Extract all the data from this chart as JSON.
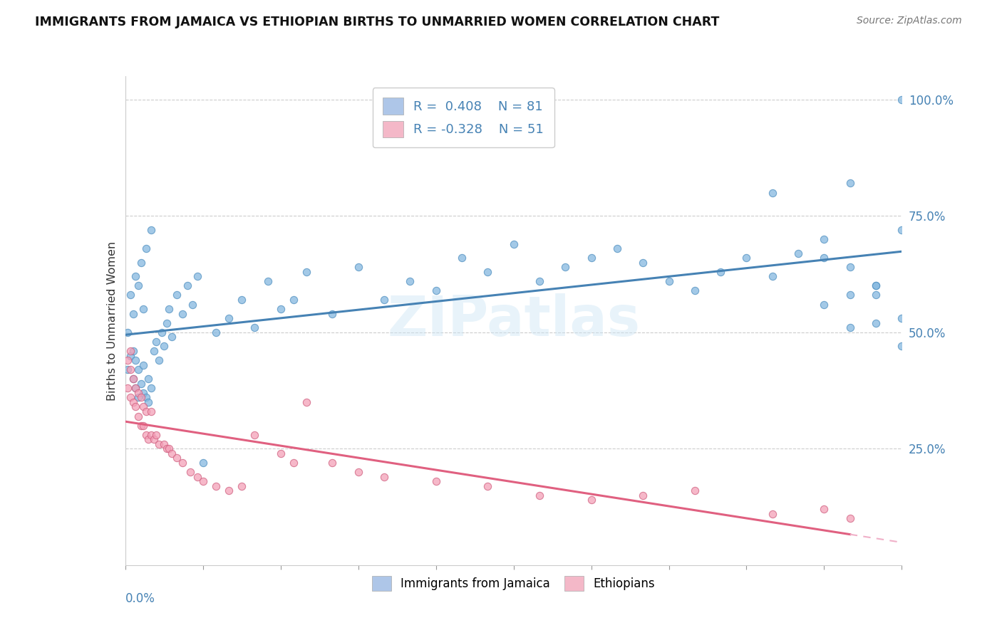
{
  "title": "IMMIGRANTS FROM JAMAICA VS ETHIOPIAN BIRTHS TO UNMARRIED WOMEN CORRELATION CHART",
  "source_text": "Source: ZipAtlas.com",
  "ylabel": "Births to Unmarried Women",
  "watermark": "ZIPatlas",
  "blue_scatter_color": "#85b8e0",
  "pink_scatter_color": "#f4a0b8",
  "blue_line_color": "#4682b4",
  "pink_line_color": "#e06080",
  "pink_line_dashed_color": "#f0b0c8",
  "legend_blue_color": "#aec6e8",
  "legend_pink_color": "#f4b8c8",
  "xlim": [
    0.0,
    0.3
  ],
  "ylim": [
    0.0,
    1.05
  ],
  "blue_R": 0.408,
  "blue_N": 81,
  "pink_R": -0.328,
  "pink_N": 51,
  "blue_x": [
    0.001,
    0.001,
    0.002,
    0.002,
    0.003,
    0.003,
    0.003,
    0.004,
    0.004,
    0.004,
    0.005,
    0.005,
    0.005,
    0.006,
    0.006,
    0.007,
    0.007,
    0.007,
    0.008,
    0.008,
    0.009,
    0.009,
    0.01,
    0.01,
    0.011,
    0.012,
    0.013,
    0.014,
    0.015,
    0.016,
    0.017,
    0.018,
    0.02,
    0.022,
    0.024,
    0.026,
    0.028,
    0.03,
    0.035,
    0.04,
    0.045,
    0.05,
    0.055,
    0.06,
    0.065,
    0.07,
    0.08,
    0.09,
    0.1,
    0.11,
    0.12,
    0.13,
    0.14,
    0.15,
    0.16,
    0.17,
    0.18,
    0.19,
    0.2,
    0.21,
    0.22,
    0.23,
    0.24,
    0.25,
    0.26,
    0.27,
    0.28,
    0.29,
    0.3,
    0.28,
    0.29,
    0.3,
    0.25,
    0.27,
    0.29,
    0.3,
    0.27,
    0.28,
    0.29,
    0.3,
    0.28
  ],
  "blue_y": [
    0.42,
    0.5,
    0.45,
    0.58,
    0.4,
    0.46,
    0.54,
    0.38,
    0.44,
    0.62,
    0.36,
    0.42,
    0.6,
    0.39,
    0.65,
    0.37,
    0.43,
    0.55,
    0.36,
    0.68,
    0.35,
    0.4,
    0.38,
    0.72,
    0.46,
    0.48,
    0.44,
    0.5,
    0.47,
    0.52,
    0.55,
    0.49,
    0.58,
    0.54,
    0.6,
    0.56,
    0.62,
    0.22,
    0.5,
    0.53,
    0.57,
    0.51,
    0.61,
    0.55,
    0.57,
    0.63,
    0.54,
    0.64,
    0.57,
    0.61,
    0.59,
    0.66,
    0.63,
    0.69,
    0.61,
    0.64,
    0.66,
    0.68,
    0.65,
    0.61,
    0.59,
    0.63,
    0.66,
    0.62,
    0.67,
    0.7,
    0.58,
    0.52,
    0.47,
    0.82,
    0.6,
    1.0,
    0.8,
    0.56,
    0.6,
    0.53,
    0.66,
    0.64,
    0.58,
    0.72,
    0.51
  ],
  "pink_x": [
    0.001,
    0.001,
    0.002,
    0.002,
    0.002,
    0.003,
    0.003,
    0.004,
    0.004,
    0.005,
    0.005,
    0.006,
    0.006,
    0.007,
    0.007,
    0.008,
    0.008,
    0.009,
    0.01,
    0.01,
    0.011,
    0.012,
    0.013,
    0.015,
    0.016,
    0.017,
    0.018,
    0.02,
    0.022,
    0.025,
    0.028,
    0.03,
    0.035,
    0.04,
    0.045,
    0.05,
    0.06,
    0.065,
    0.07,
    0.08,
    0.09,
    0.1,
    0.12,
    0.14,
    0.16,
    0.18,
    0.2,
    0.22,
    0.25,
    0.27,
    0.28
  ],
  "pink_y": [
    0.38,
    0.44,
    0.36,
    0.42,
    0.46,
    0.35,
    0.4,
    0.34,
    0.38,
    0.32,
    0.37,
    0.3,
    0.36,
    0.3,
    0.34,
    0.28,
    0.33,
    0.27,
    0.28,
    0.33,
    0.27,
    0.28,
    0.26,
    0.26,
    0.25,
    0.25,
    0.24,
    0.23,
    0.22,
    0.2,
    0.19,
    0.18,
    0.17,
    0.16,
    0.17,
    0.28,
    0.24,
    0.22,
    0.35,
    0.22,
    0.2,
    0.19,
    0.18,
    0.17,
    0.15,
    0.14,
    0.15,
    0.16,
    0.11,
    0.12,
    0.1
  ]
}
